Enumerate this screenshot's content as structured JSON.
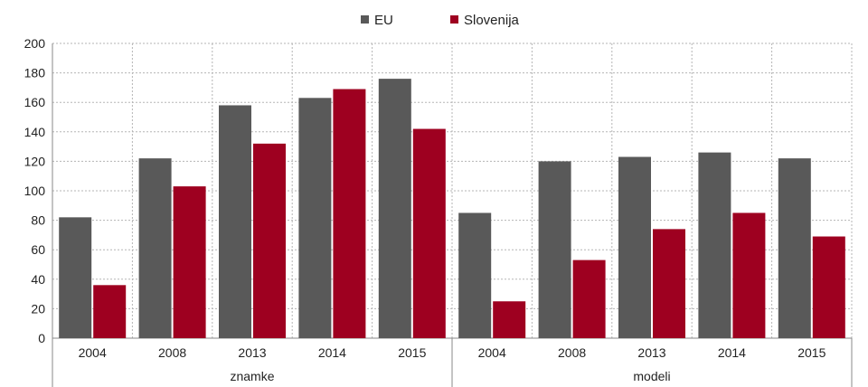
{
  "chart_data": {
    "type": "bar",
    "groups": [
      {
        "label": "znamke",
        "categories": [
          "2004",
          "2008",
          "2013",
          "2014",
          "2015"
        ]
      },
      {
        "label": "modeli",
        "categories": [
          "2004",
          "2008",
          "2013",
          "2014",
          "2015"
        ]
      }
    ],
    "series": [
      {
        "name": "EU",
        "color": "#595959",
        "values": [
          82,
          122,
          158,
          163,
          176,
          85,
          120,
          123,
          126,
          122
        ]
      },
      {
        "name": "Slovenija",
        "color": "#9e0020",
        "values": [
          36,
          103,
          132,
          169,
          142,
          25,
          53,
          74,
          85,
          69
        ]
      }
    ],
    "yticks": [
      "0",
      "20",
      "40",
      "60",
      "80",
      "100",
      "120",
      "140",
      "160",
      "180",
      "200"
    ],
    "ylim": [
      0,
      200
    ],
    "grid": true,
    "legend_position": "top-center"
  }
}
